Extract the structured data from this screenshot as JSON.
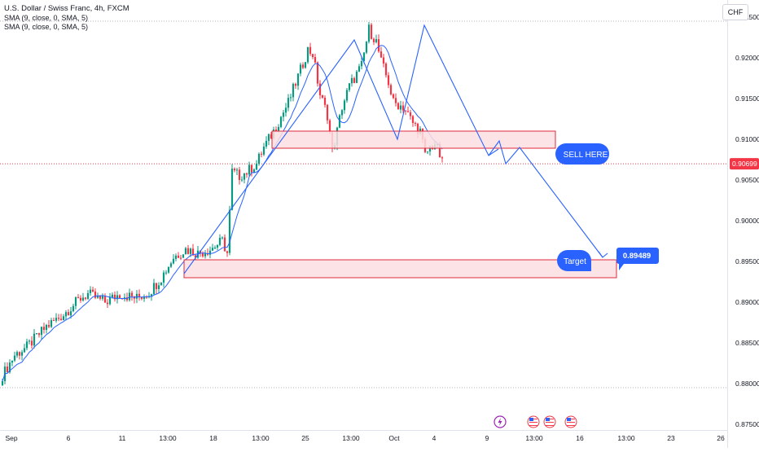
{
  "header": {
    "symbol_title": "U.S. Dollar / Swiss Franc, 4h, FXCM",
    "indicators": [
      "SMA (9, close, 0, SMA, 5)",
      "SMA (9, close, 0, SMA, 5)"
    ],
    "currency": "CHF"
  },
  "annotations": {
    "sell_label": "SELL HERE",
    "target_label": "Target",
    "target_price": "0.89489"
  },
  "colors": {
    "up": "#089981",
    "down": "#f23645",
    "sma": "#2962ff",
    "zone_fill": "#fbdfe2",
    "zone_stroke": "#e0293c",
    "callout": "#2962ff",
    "current_price": "#f23645"
  },
  "icons": [
    "lightning-event-icon",
    "us-flag-event-icon",
    "us-flag-event-icon",
    "us-flag-event-icon"
  ],
  "chart_data": {
    "type": "candlestick",
    "title": "U.S. Dollar / Swiss Franc, 4h, FXCM",
    "x_tick_labels": [
      "Sep",
      "6",
      "11",
      "13:00",
      "18",
      "13:00",
      "25",
      "13:00",
      "Oct",
      "4",
      "9",
      "13:00",
      "16",
      "13:00",
      "23",
      "26"
    ],
    "y_tick_labels": [
      "0.92500",
      "0.92000",
      "0.91500",
      "0.91000",
      "0.90500",
      "0.90000",
      "0.89500",
      "0.89000",
      "0.88500",
      "0.88000",
      "0.87500"
    ],
    "ylim": [
      0.8745,
      0.9265
    ],
    "last_price": "0.90699",
    "last_price_value": 0.90699,
    "candle_count": 155,
    "close_path": [
      [
        0,
        0.881
      ],
      [
        5,
        0.8835
      ],
      [
        10,
        0.8845
      ],
      [
        18,
        0.887
      ],
      [
        25,
        0.8885
      ],
      [
        32,
        0.8905
      ],
      [
        35,
        0.891
      ],
      [
        42,
        0.89
      ],
      [
        48,
        0.891
      ],
      [
        55,
        0.8905
      ],
      [
        60,
        0.8912
      ],
      [
        65,
        0.893
      ],
      [
        70,
        0.8955
      ],
      [
        75,
        0.8965
      ],
      [
        80,
        0.896
      ],
      [
        85,
        0.8965
      ],
      [
        90,
        0.8975
      ],
      [
        92,
        0.896
      ],
      [
        94,
        0.906
      ],
      [
        97,
        0.9055
      ],
      [
        100,
        0.906
      ],
      [
        104,
        0.907
      ],
      [
        107,
        0.909
      ],
      [
        111,
        0.911
      ],
      [
        117,
        0.9145
      ],
      [
        122,
        0.9185
      ],
      [
        125,
        0.921
      ],
      [
        127,
        0.9205
      ],
      [
        130,
        0.9155
      ],
      [
        133,
        0.913
      ],
      [
        135,
        0.9085
      ],
      [
        137,
        0.911
      ],
      [
        139,
        0.914
      ],
      [
        142,
        0.9165
      ],
      [
        147,
        0.919
      ],
      [
        150,
        0.9235
      ],
      [
        153,
        0.922
      ],
      [
        155,
        0.9195
      ],
      [
        158,
        0.917
      ],
      [
        160,
        0.9145
      ],
      [
        164,
        0.914
      ],
      [
        168,
        0.912
      ],
      [
        171,
        0.911
      ],
      [
        173,
        0.908
      ],
      [
        175,
        0.909
      ],
      [
        177,
        0.9095
      ],
      [
        179,
        0.908
      ],
      [
        180,
        0.907
      ]
    ],
    "resistance_zone": [
      0.9089,
      0.911
    ],
    "support_zone": [
      0.893,
      0.8952
    ],
    "zigzag": [
      [
        66,
        0.8935
      ],
      [
        126,
        0.9222
      ],
      [
        140,
        0.91
      ],
      [
        151,
        0.924
      ],
      [
        173,
        0.908
      ],
      [
        184,
        0.9088
      ],
      [
        213,
        0.8953
      ]
    ],
    "projection": [
      [
        177,
        0.9083
      ],
      [
        180,
        0.907
      ],
      [
        185,
        0.909
      ],
      [
        215,
        0.895
      ]
    ],
    "target_price": 0.89489
  }
}
